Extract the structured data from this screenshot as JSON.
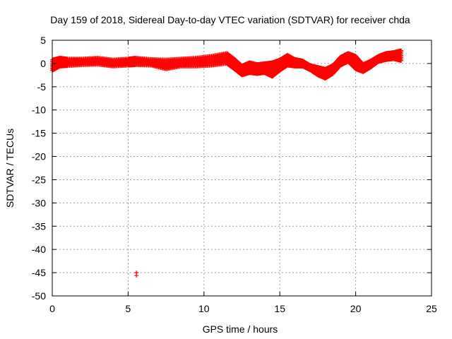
{
  "chart_data": {
    "type": "scatter",
    "title": "Day 159 of 2018, Sidereal Day-to-day VTEC variation (SDTVAR) for receiver chda",
    "xlabel": "GPS time / hours",
    "ylabel": "SDTVAR / TECUs",
    "xlim": [
      0,
      25
    ],
    "ylim": [
      -50,
      5
    ],
    "xticks": [
      0,
      5,
      10,
      15,
      20,
      25
    ],
    "yticks": [
      5,
      0,
      -5,
      -10,
      -15,
      -20,
      -25,
      -30,
      -35,
      -40,
      -45,
      -50
    ],
    "grid": true,
    "series": [
      {
        "name": "SDTVAR",
        "color": "#ff0000",
        "marker": "plus",
        "band": [
          [
            0.0,
            -1.5,
            0.8
          ],
          [
            0.5,
            -0.6,
            1.2
          ],
          [
            1.0,
            -0.5,
            1.0
          ],
          [
            2.0,
            -0.3,
            1.0
          ],
          [
            3.0,
            -0.2,
            1.2
          ],
          [
            4.0,
            -0.6,
            0.8
          ],
          [
            5.0,
            -0.4,
            1.0
          ],
          [
            5.5,
            -0.3,
            1.2
          ],
          [
            6.5,
            -0.4,
            0.9
          ],
          [
            7.5,
            -1.2,
            0.8
          ],
          [
            8.5,
            -0.6,
            1.0
          ],
          [
            9.5,
            -0.6,
            1.2
          ],
          [
            10.5,
            -0.4,
            1.6
          ],
          [
            11.5,
            0.0,
            2.2
          ],
          [
            12.0,
            -1.2,
            1.0
          ],
          [
            12.5,
            -2.5,
            -0.5
          ],
          [
            13.0,
            -2.0,
            0.2
          ],
          [
            13.5,
            -2.2,
            -0.2
          ],
          [
            14.0,
            -2.0,
            0.0
          ],
          [
            14.5,
            -2.8,
            0.2
          ],
          [
            15.0,
            -1.5,
            0.8
          ],
          [
            15.5,
            -0.4,
            1.8
          ],
          [
            16.0,
            -0.6,
            0.9
          ],
          [
            16.5,
            -0.6,
            0.6
          ],
          [
            17.0,
            -1.4,
            -0.4
          ],
          [
            17.5,
            -2.5,
            -0.8
          ],
          [
            18.0,
            -3.2,
            -1.2
          ],
          [
            18.5,
            -2.2,
            -0.4
          ],
          [
            19.0,
            -0.4,
            1.4
          ],
          [
            19.5,
            0.4,
            2.2
          ],
          [
            20.0,
            -1.2,
            1.6
          ],
          [
            20.5,
            -1.8,
            -0.2
          ],
          [
            21.0,
            -0.8,
            0.6
          ],
          [
            21.5,
            0.4,
            1.6
          ],
          [
            22.0,
            0.8,
            2.2
          ],
          [
            22.5,
            1.0,
            2.4
          ],
          [
            23.0,
            0.6,
            2.8
          ]
        ],
        "outliers": [
          [
            5.55,
            -45.0
          ],
          [
            5.55,
            -45.6
          ]
        ]
      }
    ]
  }
}
